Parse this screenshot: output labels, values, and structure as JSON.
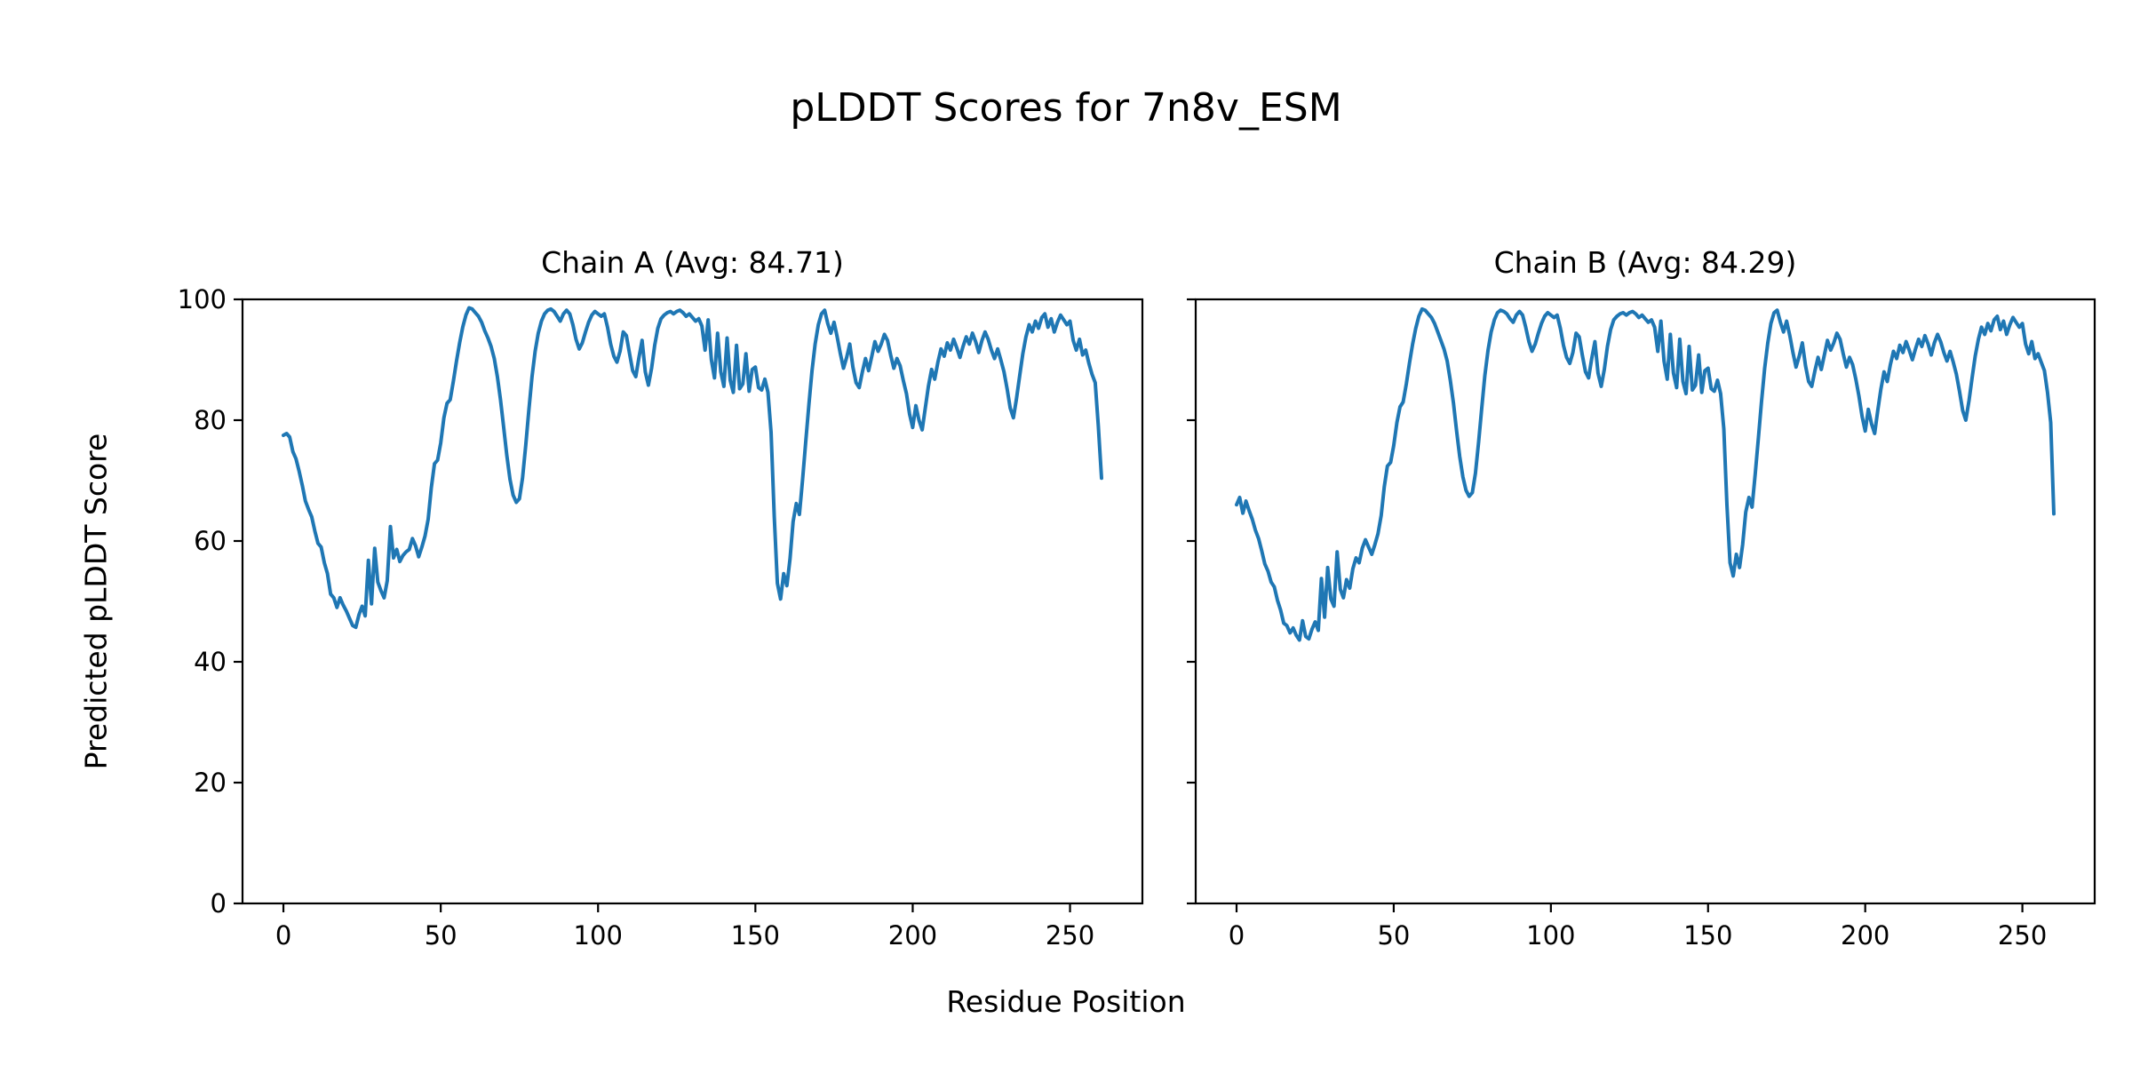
{
  "figure": {
    "suptitle": "pLDDT Scores for 7n8v_ESM",
    "xlabel": "Residue Position",
    "ylabel": "Predicted pLDDT Score"
  },
  "chart_data": {
    "type": "line",
    "line_color": "#1f77b4",
    "axis_color": "#000000",
    "background": "#ffffff",
    "grid": false,
    "legend": "none",
    "xlim": [
      -13,
      273
    ],
    "ylim": [
      0,
      100
    ],
    "x_ticks": [
      0,
      50,
      100,
      150,
      200,
      250
    ],
    "y_ticks": [
      0,
      20,
      40,
      60,
      80,
      100
    ],
    "x_start": 0,
    "x_step": 1,
    "subplots": [
      {
        "title": "Chain A (Avg: 84.71)",
        "chain": "A",
        "avg": 84.71,
        "values": [
          77.5,
          77.8,
          77.2,
          74.8,
          73.6,
          71.5,
          69.2,
          66.6,
          65.2,
          64.0,
          61.6,
          59.6,
          59.0,
          56.4,
          54.6,
          51.2,
          50.6,
          49.0,
          50.6,
          49.4,
          48.4,
          47.2,
          46.0,
          45.7,
          47.8,
          49.2,
          47.6,
          56.8,
          49.6,
          58.8,
          53.2,
          51.8,
          50.6,
          53.4,
          62.4,
          57.2,
          58.6,
          56.6,
          57.6,
          58.2,
          58.6,
          60.4,
          59.2,
          57.4,
          59.0,
          60.8,
          63.6,
          68.8,
          72.8,
          73.4,
          76.2,
          80.4,
          82.8,
          83.4,
          86.4,
          89.8,
          92.8,
          95.4,
          97.4,
          98.6,
          98.4,
          97.8,
          97.2,
          96.2,
          94.8,
          93.6,
          92.2,
          90.2,
          87.2,
          83.4,
          78.8,
          74.2,
          70.2,
          67.6,
          66.4,
          67.0,
          70.4,
          75.8,
          81.6,
          87.2,
          91.4,
          94.4,
          96.4,
          97.6,
          98.2,
          98.4,
          98.0,
          97.2,
          96.4,
          97.6,
          98.2,
          97.6,
          95.8,
          93.4,
          91.8,
          92.8,
          94.6,
          96.2,
          97.4,
          98.0,
          97.6,
          97.2,
          97.6,
          95.4,
          92.6,
          90.6,
          89.6,
          91.4,
          94.6,
          94.0,
          91.0,
          88.2,
          87.2,
          90.4,
          93.2,
          88.0,
          85.8,
          88.6,
          92.4,
          95.2,
          96.8,
          97.4,
          97.8,
          98.0,
          97.6,
          98.0,
          98.2,
          97.8,
          97.2,
          97.6,
          97.0,
          96.4,
          96.8,
          95.6,
          91.6,
          96.6,
          90.0,
          87.0,
          94.4,
          88.0,
          85.6,
          93.6,
          86.6,
          84.6,
          92.4,
          85.2,
          86.0,
          91.0,
          84.8,
          88.4,
          88.8,
          85.4,
          85.0,
          86.8,
          84.6,
          78.0,
          64.0,
          53.0,
          50.4,
          54.6,
          52.6,
          57.0,
          63.2,
          66.2,
          64.4,
          70.2,
          76.4,
          82.6,
          88.2,
          92.6,
          95.8,
          97.6,
          98.2,
          96.0,
          94.4,
          96.2,
          93.8,
          91.0,
          88.6,
          90.4,
          92.6,
          88.8,
          86.2,
          85.4,
          88.0,
          90.2,
          88.2,
          90.6,
          93.0,
          91.4,
          92.6,
          94.2,
          93.2,
          90.8,
          88.6,
          90.2,
          89.0,
          86.6,
          84.4,
          81.0,
          78.8,
          82.4,
          80.0,
          78.4,
          82.0,
          85.6,
          88.4,
          86.8,
          89.6,
          91.8,
          90.6,
          92.8,
          91.6,
          93.4,
          92.0,
          90.4,
          92.2,
          93.8,
          92.6,
          94.4,
          93.0,
          91.2,
          93.2,
          94.6,
          93.4,
          91.6,
          90.2,
          91.8,
          90.0,
          88.0,
          85.2,
          82.0,
          80.4,
          83.6,
          87.4,
          91.0,
          93.8,
          95.8,
          94.6,
          96.4,
          95.2,
          97.0,
          97.6,
          95.4,
          96.8,
          94.6,
          96.2,
          97.4,
          96.6,
          95.8,
          96.4,
          93.2,
          91.6,
          93.4,
          90.8,
          91.6,
          89.4,
          87.6,
          86.2,
          79.0,
          70.4
        ]
      },
      {
        "title": "Chain B (Avg: 84.29)",
        "chain": "B",
        "avg": 84.29,
        "values": [
          66.0,
          67.2,
          64.6,
          66.6,
          65.0,
          63.6,
          61.8,
          60.4,
          58.4,
          56.2,
          55.0,
          53.2,
          52.4,
          50.2,
          48.6,
          46.4,
          46.0,
          44.8,
          45.6,
          44.4,
          43.6,
          46.8,
          44.2,
          43.8,
          45.4,
          46.6,
          45.2,
          53.8,
          47.4,
          55.6,
          50.4,
          49.2,
          58.2,
          52.0,
          50.6,
          53.6,
          52.2,
          55.4,
          57.2,
          56.4,
          58.8,
          60.2,
          59.0,
          57.8,
          59.4,
          61.2,
          64.2,
          69.0,
          72.4,
          73.0,
          75.8,
          79.6,
          82.2,
          83.0,
          86.0,
          89.4,
          92.6,
          95.2,
          97.2,
          98.4,
          98.2,
          97.6,
          97.0,
          96.0,
          94.6,
          93.2,
          91.8,
          89.8,
          86.6,
          82.8,
          78.2,
          74.0,
          70.6,
          68.4,
          67.4,
          68.0,
          71.2,
          76.4,
          82.0,
          87.4,
          91.6,
          94.6,
          96.6,
          97.8,
          98.2,
          98.0,
          97.6,
          96.8,
          96.2,
          97.4,
          98.0,
          97.4,
          95.4,
          93.0,
          91.4,
          92.6,
          94.4,
          96.0,
          97.2,
          97.8,
          97.4,
          97.0,
          97.4,
          95.2,
          92.4,
          90.4,
          89.4,
          91.2,
          94.4,
          93.8,
          90.8,
          88.0,
          87.0,
          90.2,
          93.0,
          87.8,
          85.6,
          88.4,
          92.2,
          95.0,
          96.6,
          97.2,
          97.6,
          97.8,
          97.4,
          97.8,
          98.0,
          97.6,
          97.0,
          97.4,
          96.8,
          96.2,
          96.6,
          95.4,
          91.4,
          96.4,
          89.8,
          86.8,
          94.2,
          87.8,
          85.4,
          93.4,
          86.4,
          84.4,
          92.2,
          85.0,
          85.8,
          90.8,
          84.6,
          88.2,
          88.6,
          85.2,
          84.8,
          86.6,
          84.4,
          78.6,
          66.0,
          56.4,
          54.2,
          57.8,
          55.6,
          59.4,
          64.8,
          67.2,
          65.6,
          71.0,
          77.0,
          83.0,
          88.6,
          92.8,
          96.0,
          97.8,
          98.2,
          96.2,
          94.6,
          96.4,
          94.0,
          91.2,
          88.8,
          90.6,
          92.8,
          89.0,
          86.4,
          85.6,
          88.2,
          90.4,
          88.4,
          90.8,
          93.2,
          91.6,
          92.8,
          94.4,
          93.4,
          91.0,
          88.8,
          90.4,
          89.2,
          86.8,
          84.0,
          80.6,
          78.2,
          81.8,
          79.4,
          77.8,
          81.6,
          85.2,
          88.0,
          86.4,
          89.2,
          91.4,
          90.2,
          92.4,
          91.2,
          93.0,
          91.6,
          90.0,
          91.8,
          93.4,
          92.2,
          94.0,
          92.6,
          90.8,
          92.8,
          94.2,
          93.0,
          91.2,
          89.8,
          91.4,
          89.6,
          87.6,
          84.8,
          81.6,
          80.0,
          83.2,
          87.0,
          90.6,
          93.4,
          95.4,
          94.2,
          96.0,
          94.8,
          96.6,
          97.2,
          95.0,
          96.4,
          94.2,
          95.8,
          97.0,
          96.2,
          95.4,
          96.0,
          92.6,
          91.0,
          93.0,
          90.2,
          91.0,
          89.6,
          88.2,
          84.6,
          79.6,
          64.5
        ]
      }
    ]
  }
}
